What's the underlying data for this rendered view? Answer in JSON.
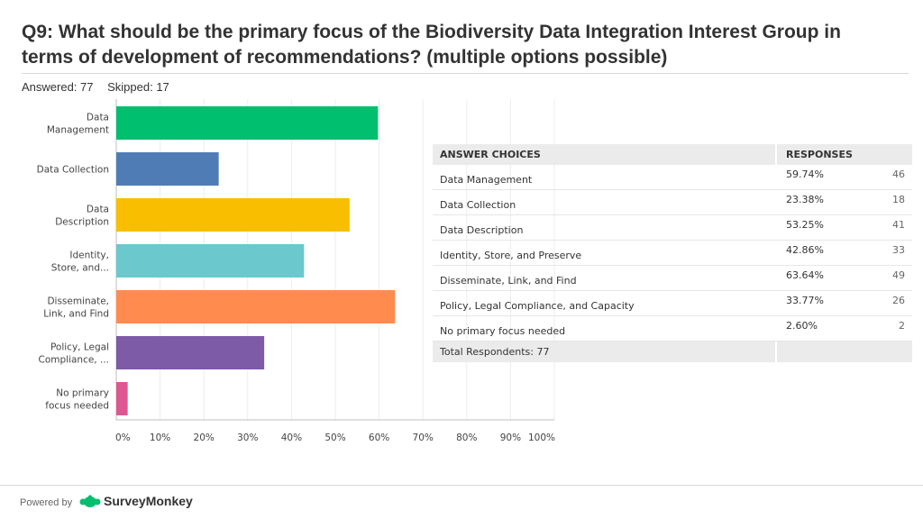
{
  "title": "Q9: What should be the primary focus of the Biodiversity Data Integration Interest Group in terms of development of recommendations? (multiple options possible)",
  "answered": "Answered: 77",
  "skipped": "Skipped: 17",
  "chart_data": {
    "type": "bar",
    "orientation": "horizontal",
    "title": "",
    "categories": [
      [
        "Data",
        "Management"
      ],
      [
        "Data Collection"
      ],
      [
        "Data",
        "Description"
      ],
      [
        "Identity,",
        "Store, and..."
      ],
      [
        "Disseminate,",
        "Link, and Find"
      ],
      [
        "Policy, Legal",
        "Compliance, ..."
      ],
      [
        "No primary",
        "focus needed"
      ]
    ],
    "values": [
      59.74,
      23.38,
      53.25,
      42.86,
      63.64,
      33.77,
      2.6
    ],
    "colors": [
      "#00bf6f",
      "#507cb6",
      "#f9be00",
      "#6bc8cd",
      "#ff8b4f",
      "#7d5ba6",
      "#dd5791"
    ],
    "xlim": [
      0,
      100
    ],
    "ticks": [
      0,
      10,
      20,
      30,
      40,
      50,
      60,
      70,
      80,
      90,
      100
    ],
    "tick_labels": [
      "0%",
      "10%",
      "20%",
      "30%",
      "40%",
      "50%",
      "60%",
      "70%",
      "80%",
      "90%",
      "100%"
    ],
    "grid": true
  },
  "table": {
    "header": {
      "choices": "ANSWER CHOICES",
      "responses": "RESPONSES"
    },
    "rows": [
      {
        "label": "Data Management",
        "pct": "59.74%",
        "count": "46"
      },
      {
        "label": "Data Collection",
        "pct": "23.38%",
        "count": "18"
      },
      {
        "label": "Data Description",
        "pct": "53.25%",
        "count": "41"
      },
      {
        "label": "Identity, Store, and Preserve",
        "pct": "42.86%",
        "count": "33"
      },
      {
        "label": "Disseminate, Link, and Find",
        "pct": "63.64%",
        "count": "49"
      },
      {
        "label": "Policy, Legal Compliance, and Capacity",
        "pct": "33.77%",
        "count": "26"
      },
      {
        "label": "No primary focus needed",
        "pct": "2.60%",
        "count": "2"
      }
    ],
    "total": "Total Respondents: 77"
  },
  "footer": {
    "powered_by": "Powered by",
    "brand": "SurveyMonkey",
    "brand_color": "#00bf6f"
  }
}
